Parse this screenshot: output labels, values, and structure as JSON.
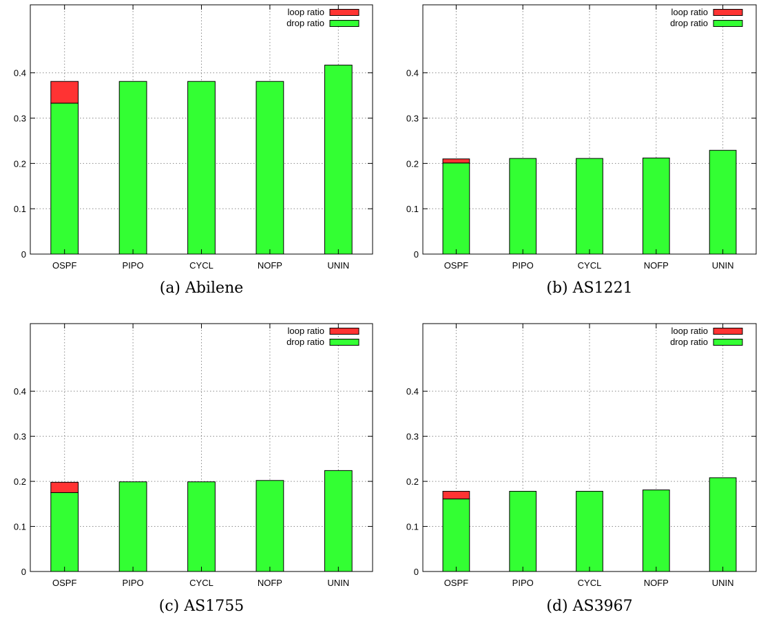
{
  "legend": {
    "loop_label": "loop ratio",
    "drop_label": "drop ratio"
  },
  "colors": {
    "loop": "#ff3333",
    "drop": "#33ff33",
    "grid": "#888888",
    "axis": "#000000"
  },
  "chart_data": [
    {
      "type": "bar",
      "stacked": true,
      "caption": "(a) Abilene",
      "categories": [
        "OSPF",
        "PIPO",
        "CYCL",
        "NOFP",
        "UNIN"
      ],
      "series": [
        {
          "name": "drop ratio",
          "values": [
            0.333,
            0.381,
            0.381,
            0.381,
            0.417
          ]
        },
        {
          "name": "loop ratio",
          "values": [
            0.048,
            0,
            0,
            0,
            0
          ]
        }
      ],
      "yticks": [
        0,
        0.1,
        0.2,
        0.3,
        0.4
      ],
      "ylim": [
        0,
        0.55
      ],
      "grid": true,
      "legend_position": "top-right"
    },
    {
      "type": "bar",
      "stacked": true,
      "caption": "(b) AS1221",
      "categories": [
        "OSPF",
        "PIPO",
        "CYCL",
        "NOFP",
        "UNIN"
      ],
      "series": [
        {
          "name": "drop ratio",
          "values": [
            0.201,
            0.211,
            0.211,
            0.212,
            0.229
          ]
        },
        {
          "name": "loop ratio",
          "values": [
            0.009,
            0,
            0,
            0,
            0
          ]
        }
      ],
      "yticks": [
        0,
        0.1,
        0.2,
        0.3,
        0.4
      ],
      "ylim": [
        0,
        0.55
      ],
      "grid": true,
      "legend_position": "top-right"
    },
    {
      "type": "bar",
      "stacked": true,
      "caption": "(c) AS1755",
      "categories": [
        "OSPF",
        "PIPO",
        "CYCL",
        "NOFP",
        "UNIN"
      ],
      "series": [
        {
          "name": "drop ratio",
          "values": [
            0.175,
            0.199,
            0.199,
            0.202,
            0.224
          ]
        },
        {
          "name": "loop ratio",
          "values": [
            0.023,
            0,
            0,
            0,
            0
          ]
        }
      ],
      "yticks": [
        0,
        0.1,
        0.2,
        0.3,
        0.4
      ],
      "ylim": [
        0,
        0.55
      ],
      "grid": true,
      "legend_position": "top-right"
    },
    {
      "type": "bar",
      "stacked": true,
      "caption": "(d) AS3967",
      "categories": [
        "OSPF",
        "PIPO",
        "CYCL",
        "NOFP",
        "UNIN"
      ],
      "series": [
        {
          "name": "drop ratio",
          "values": [
            0.161,
            0.178,
            0.178,
            0.181,
            0.208
          ]
        },
        {
          "name": "loop ratio",
          "values": [
            0.017,
            0,
            0,
            0,
            0
          ]
        }
      ],
      "yticks": [
        0,
        0.1,
        0.2,
        0.3,
        0.4
      ],
      "ylim": [
        0,
        0.55
      ],
      "grid": true,
      "legend_position": "top-right"
    }
  ]
}
